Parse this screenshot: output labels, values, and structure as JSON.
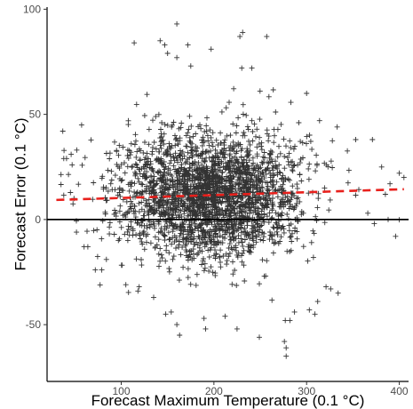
{
  "chart_data": {
    "type": "scatter",
    "title": "",
    "xlabel": "Forecast Maximum Temperature (0.1 °C)",
    "ylabel": "Forecast Error (0.1 °C)",
    "xlim": [
      20,
      410
    ],
    "ylim": [
      -77,
      101
    ],
    "x_ticks": [
      100,
      200,
      300,
      400
    ],
    "y_ticks": [
      -50,
      0,
      50,
      100
    ],
    "x_tick_labels": [
      "100",
      "200",
      "300",
      "400"
    ],
    "y_tick_labels": [
      "-50",
      "0",
      "50",
      "100"
    ],
    "grid": false,
    "marker": "plus",
    "point_color": "#333333",
    "reference_line": {
      "y": 0,
      "color": "#000000"
    },
    "trend_line": {
      "type": "linear-fit",
      "style": "dashed",
      "color": "#e8201c",
      "x": [
        30,
        405
      ],
      "y": [
        9.3,
        14.4
      ]
    },
    "cloud": {
      "count": 2600,
      "x_mean": 195,
      "x_sd": 50,
      "x_range": [
        35,
        400
      ],
      "y_mean": 12,
      "y_sd": 15,
      "y_range": [
        -70,
        95
      ]
    },
    "points": [
      [
        160,
        93
      ],
      [
        231,
        89
      ],
      [
        228,
        87
      ],
      [
        257,
        87
      ],
      [
        172,
        83
      ],
      [
        114,
        84
      ],
      [
        142,
        85
      ],
      [
        147,
        83
      ],
      [
        197,
        81
      ],
      [
        150,
        79
      ],
      [
        160,
        77
      ],
      [
        175,
        73
      ],
      [
        230,
        72
      ],
      [
        241,
        72
      ],
      [
        300,
        60
      ],
      [
        314,
        47
      ],
      [
        333,
        44
      ],
      [
        353,
        38
      ],
      [
        371,
        38
      ],
      [
        381,
        25
      ],
      [
        400,
        22
      ],
      [
        405,
        20
      ],
      [
        390,
        17
      ],
      [
        385,
        12
      ],
      [
        366,
        3
      ],
      [
        388,
        0
      ],
      [
        373,
        -2
      ],
      [
        396,
        -8
      ],
      [
        37,
        42
      ],
      [
        38,
        29
      ],
      [
        41,
        29
      ],
      [
        46,
        31
      ],
      [
        52,
        33
      ],
      [
        49,
        10
      ],
      [
        47,
        26
      ],
      [
        60,
        -13
      ],
      [
        64,
        -13
      ],
      [
        72,
        -24
      ],
      [
        79,
        -24
      ],
      [
        84,
        -19
      ],
      [
        321,
        -32
      ],
      [
        334,
        -35
      ],
      [
        326,
        -33
      ],
      [
        312,
        -39
      ],
      [
        309,
        -45
      ],
      [
        303,
        -43
      ],
      [
        282,
        -48
      ],
      [
        276,
        -58
      ],
      [
        278,
        -65
      ],
      [
        278,
        -61
      ],
      [
        249,
        -56
      ],
      [
        160,
        -50
      ],
      [
        154,
        -44
      ],
      [
        148,
        -45
      ],
      [
        163,
        -55
      ],
      [
        191,
        -52
      ],
      [
        135,
        -37
      ],
      [
        118,
        -34
      ],
      [
        105,
        -31
      ],
      [
        277,
        -48
      ],
      [
        287,
        -44
      ],
      [
        225,
        -52
      ],
      [
        212,
        -46
      ]
    ]
  }
}
